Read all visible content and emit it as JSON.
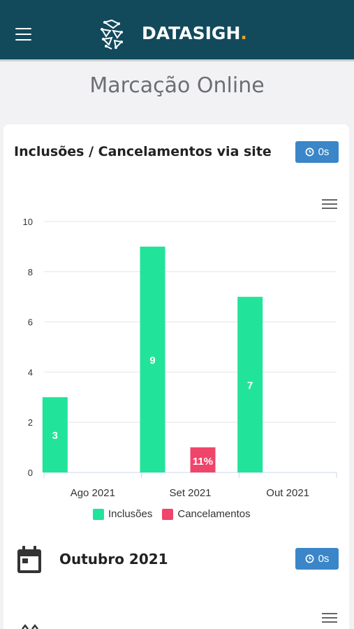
{
  "header": {
    "brand": "DATASIGH",
    "brand_dot": ".",
    "menu_icon": "hamburger-icon",
    "logo_icon": "datasigh-logo-icon"
  },
  "page": {
    "title": "Marcação Online"
  },
  "chart_card": {
    "title": "Inclusões / Cancelamentos via site",
    "timer_label": "0s",
    "timer_icon": "clock-icon",
    "menu_icon": "chart-menu-icon"
  },
  "chart_data": {
    "type": "bar",
    "categories": [
      "Ago 2021",
      "Set 2021",
      "Out 2021"
    ],
    "ylim": [
      0,
      10
    ],
    "yticks": [
      0,
      2,
      4,
      6,
      8,
      10
    ],
    "series": [
      {
        "name": "Inclusões",
        "color": "#22e39a",
        "values": [
          3,
          9,
          7
        ],
        "labels": [
          "3",
          "9",
          "7"
        ]
      },
      {
        "name": "Cancelamentos",
        "color": "#f0456a",
        "values": [
          0,
          1,
          0
        ],
        "labels": [
          "",
          "11%",
          ""
        ]
      }
    ],
    "legend_position": "bottom",
    "grid": true
  },
  "section2": {
    "title": "Outubro 2021",
    "timer_label": "0s",
    "calendar_icon": "calendar-icon"
  },
  "colors": {
    "header_bg": "#124a5c",
    "accent_orange": "#f0a51e",
    "badge_blue": "#3a86c8"
  }
}
